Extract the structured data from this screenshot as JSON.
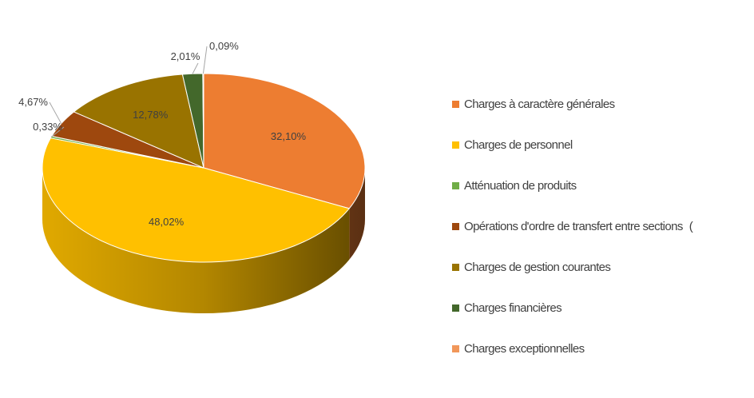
{
  "chart_data": {
    "type": "pie",
    "style": "3d",
    "categories": [
      "Charges à caractère générales",
      "Charges de personnel",
      "Atténuation de produits",
      "Opérations d'ordre de transfert entre sections",
      "Charges de gestion courantes",
      "Charges financières",
      "Charges exceptionnelles"
    ],
    "values": [
      32.1,
      48.02,
      0.33,
      4.67,
      12.78,
      2.01,
      0.09
    ],
    "value_labels": [
      "32,10%",
      "48,02%",
      "0,33%",
      "4,67%",
      "12,78%",
      "2,01%",
      "0,09%"
    ],
    "colors": [
      "#ED7D31",
      "#FFC000",
      "#70AD47",
      "#9E480E",
      "#997300",
      "#43682B",
      "#F1975A"
    ],
    "legend_position": "right",
    "legend_trailing_mark": "("
  }
}
